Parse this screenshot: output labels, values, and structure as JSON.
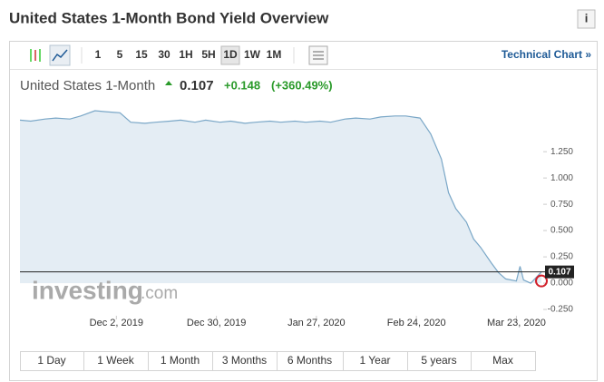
{
  "header": {
    "title": "United States 1-Month Bond Yield Overview"
  },
  "toolbar": {
    "intervals": [
      "1",
      "5",
      "15",
      "30",
      "1H",
      "5H",
      "1D",
      "1W",
      "1M"
    ],
    "active": "1D",
    "link": "Technical Chart »"
  },
  "quote": {
    "name": "United States 1-Month",
    "change": "+0.148",
    "change_percent": "(+360.49%)"
  },
  "watermark": {
    "brand": "investing",
    "suffix": ".com"
  },
  "chart_data": {
    "type": "area",
    "color": "#7aa7c7",
    "fill": "#e4edf4",
    "x": [
      "2019-11-05",
      "2019-11-08",
      "2019-11-12",
      "2019-11-15",
      "2019-11-19",
      "2019-11-22",
      "2019-11-26",
      "2019-11-29",
      "2019-12-03",
      "2019-12-06",
      "2019-12-10",
      "2019-12-13",
      "2019-12-17",
      "2019-12-20",
      "2019-12-24",
      "2019-12-27",
      "2019-12-31",
      "2020-01-03",
      "2020-01-07",
      "2020-01-10",
      "2020-01-14",
      "2020-01-17",
      "2020-01-21",
      "2020-01-24",
      "2020-01-28",
      "2020-01-31",
      "2020-02-04",
      "2020-02-07",
      "2020-02-11",
      "2020-02-14",
      "2020-02-18",
      "2020-02-21",
      "2020-02-25",
      "2020-02-28",
      "2020-03-02",
      "2020-03-04",
      "2020-03-06",
      "2020-03-09",
      "2020-03-11",
      "2020-03-13",
      "2020-03-16",
      "2020-03-18",
      "2020-03-20",
      "2020-03-23",
      "2020-03-24",
      "2020-03-25",
      "2020-03-27",
      "2020-03-30"
    ],
    "values": [
      1.55,
      1.54,
      1.56,
      1.57,
      1.56,
      1.59,
      1.64,
      1.63,
      1.62,
      1.53,
      1.52,
      1.53,
      1.54,
      1.55,
      1.53,
      1.55,
      1.53,
      1.54,
      1.52,
      1.53,
      1.54,
      1.53,
      1.54,
      1.53,
      1.54,
      1.53,
      1.56,
      1.57,
      1.56,
      1.58,
      1.59,
      1.59,
      1.57,
      1.42,
      1.18,
      0.86,
      0.71,
      0.58,
      0.42,
      0.34,
      0.19,
      0.1,
      0.04,
      0.02,
      0.16,
      0.03,
      0.0,
      0.107
    ],
    "current_value": 0.107,
    "xlim": [
      "2019-11-05",
      "2020-03-30"
    ],
    "xticks": [
      {
        "value": "2019-12-02",
        "label": "Dec 2, 2019"
      },
      {
        "value": "2019-12-30",
        "label": "Dec 30, 2019"
      },
      {
        "value": "2020-01-27",
        "label": "Jan 27, 2020"
      },
      {
        "value": "2020-02-24",
        "label": "Feb 24, 2020"
      },
      {
        "value": "2020-03-23",
        "label": "Mar 23, 2020"
      }
    ],
    "ylim": [
      -0.31,
      1.7
    ],
    "yticks": [
      {
        "value": -0.25,
        "label": "-0.250"
      },
      {
        "value": 0,
        "label": "0.000"
      },
      {
        "value": 0.25,
        "label": "0.250"
      },
      {
        "value": 0.5,
        "label": "0.500"
      },
      {
        "value": 0.75,
        "label": "0.750"
      },
      {
        "value": 1,
        "label": "1.000"
      },
      {
        "value": 1.25,
        "label": "1.250"
      }
    ]
  },
  "ranges": [
    "1 Day",
    "1 Week",
    "1 Month",
    "3 Months",
    "6 Months",
    "1 Year",
    "5 years",
    "Max"
  ]
}
